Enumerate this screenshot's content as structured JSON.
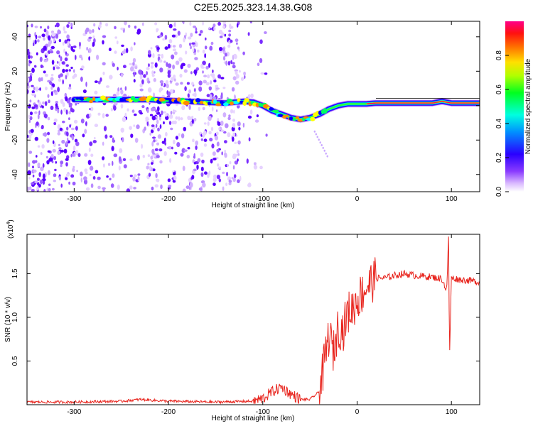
{
  "title": "C2E5.2025.323.14.38.G08",
  "chart_data": [
    {
      "type": "heatmap",
      "name": "frequency-spectrogram",
      "xlabel": "Height of straight line (km)",
      "ylabel": "Frequency (Hz)",
      "xlim": [
        -350,
        130
      ],
      "ylim": [
        -50,
        49
      ],
      "x_ticks": [
        -300,
        -200,
        -100,
        0,
        100
      ],
      "x_tick_labels": [
        "-300",
        "-200",
        "-100",
        "0",
        "100"
      ],
      "y_ticks": [
        -40,
        -20,
        0,
        20,
        40
      ],
      "y_tick_labels": [
        "-40",
        "-20",
        "0",
        "20",
        "40"
      ],
      "colorbar": {
        "label": "Normalized spectral amplitude",
        "range": [
          0,
          1
        ],
        "ticks": [
          0,
          0.2,
          0.4,
          0.6,
          0.8
        ],
        "tick_labels": [
          "0.0",
          "0.2",
          "0.4",
          "0.6",
          "0.8"
        ],
        "colormap": [
          "#ffffff",
          "#b078ff",
          "#6600ff",
          "#0000ff",
          "#00ffff",
          "#00ff00",
          "#ffff00",
          "#ff8800",
          "#ff0000",
          "#ff0088"
        ]
      },
      "ridge_x": [
        -300,
        -280,
        -260,
        -240,
        -220,
        -200,
        -180,
        -160,
        -140,
        -130,
        -120,
        -110,
        -100,
        -90,
        -80,
        -70,
        -60,
        -50,
        -40,
        -30,
        -20,
        -10,
        0,
        10,
        20,
        40,
        60,
        80,
        90,
        100,
        110,
        130
      ],
      "ridge_freq": [
        3.5,
        3.5,
        3.5,
        3.5,
        3.5,
        3,
        2.5,
        2,
        1.5,
        2,
        2.5,
        2,
        0,
        -3,
        -5,
        -7,
        -8,
        -7,
        -5,
        -2,
        0,
        1,
        1,
        1,
        1.5,
        1.5,
        1.5,
        1.5,
        2.5,
        1.5,
        1.5,
        1.5
      ],
      "noise_region_x": [
        -350,
        -125
      ]
    },
    {
      "type": "line",
      "name": "snr",
      "xlabel": "Height of straight line (km)",
      "ylabel": "SNR (10 * v/v)",
      "y_multiplier_label": "(x10",
      "y_multiplier_exponent": "4",
      "xlim": [
        -350,
        130
      ],
      "ylim": [
        0,
        1.95
      ],
      "x_ticks": [
        -300,
        -200,
        -100,
        0,
        100
      ],
      "x_tick_labels": [
        "-300",
        "-200",
        "-100",
        "0",
        "100"
      ],
      "y_ticks": [
        0.5,
        1.0,
        1.5
      ],
      "y_tick_labels": [
        "0.5",
        "1.0",
        "1.5"
      ],
      "color": "#e8251e",
      "x": [
        -350,
        -300,
        -250,
        -230,
        -200,
        -150,
        -110,
        -100,
        -90,
        -80,
        -70,
        -60,
        -50,
        -40,
        -35,
        -30,
        -25,
        -20,
        -15,
        -10,
        -5,
        0,
        10,
        20,
        30,
        40,
        50,
        60,
        70,
        80,
        90,
        95,
        97,
        98,
        100,
        110,
        120,
        130
      ],
      "y": [
        0.03,
        0.03,
        0.04,
        0.06,
        0.04,
        0.03,
        0.04,
        0.07,
        0.15,
        0.2,
        0.12,
        0.06,
        0.06,
        0.15,
        0.45,
        0.8,
        0.6,
        0.9,
        0.85,
        1.05,
        1.1,
        1.2,
        1.35,
        1.45,
        1.45,
        1.48,
        1.5,
        1.48,
        1.47,
        1.46,
        1.44,
        1.3,
        1.9,
        0.55,
        1.45,
        1.43,
        1.42,
        1.4
      ]
    }
  ]
}
